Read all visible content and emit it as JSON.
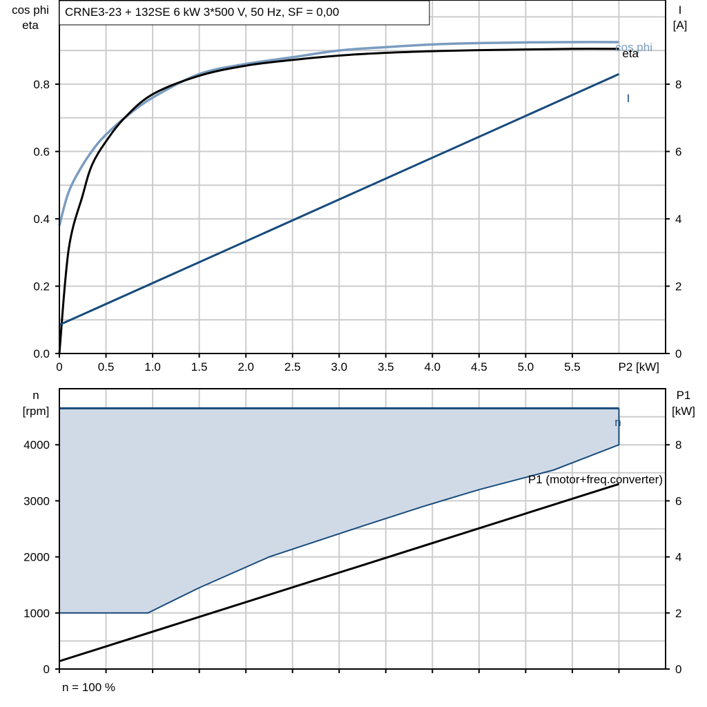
{
  "chart_data": [
    {
      "type": "line",
      "title": "CRNE3-23 + 132SE   6 kW   3*500 V, 50 Hz, SF = 0,00",
      "ylabel_left_line1": "cos phi",
      "ylabel_left_line2": "eta",
      "ylabel_right_line1": "I",
      "ylabel_right_line2": "[A]",
      "xlabel": "P2 [kW]",
      "xlim": [
        0,
        6.5
      ],
      "ylim_left": [
        0,
        1.05
      ],
      "ylim_right": [
        0,
        10.5
      ],
      "x_ticks": [
        0,
        0.5,
        1,
        1.5,
        2,
        2.5,
        3,
        3.5,
        4,
        4.5,
        5,
        5.5
      ],
      "x_tick_labels": [
        "0",
        "0.5",
        "1.0",
        "1.5",
        "2.0",
        "2.5",
        "3.0",
        "3.5",
        "4.0",
        "4.5",
        "5.0",
        "5.5"
      ],
      "y_left_ticks": [
        0,
        0.2,
        0.4,
        0.6,
        0.8
      ],
      "y_left_tick_labels": [
        "0.0",
        "0.2",
        "0.4",
        "0.6",
        "0.8"
      ],
      "y_right_ticks": [
        0,
        2,
        4,
        6,
        8
      ],
      "y_right_tick_labels": [
        "0",
        "2",
        "4",
        "6",
        "8"
      ],
      "grid": true,
      "series": [
        {
          "name": "cos phi",
          "axis": "left",
          "color": "#7a9cc0",
          "x": [
            0,
            0.1,
            0.25,
            0.4,
            0.5,
            0.7,
            1.0,
            1.5,
            2.0,
            2.5,
            3.0,
            3.5,
            4.0,
            4.5,
            5.0,
            5.5,
            6.0
          ],
          "y": [
            0.38,
            0.48,
            0.56,
            0.62,
            0.65,
            0.7,
            0.76,
            0.83,
            0.86,
            0.88,
            0.9,
            0.91,
            0.918,
            0.922,
            0.924,
            0.925,
            0.925
          ]
        },
        {
          "name": "eta",
          "axis": "left",
          "color": "#000000",
          "x": [
            0,
            0.1,
            0.25,
            0.35,
            0.5,
            0.7,
            1.0,
            1.5,
            2.0,
            2.5,
            3.0,
            3.5,
            4.0,
            4.5,
            5.0,
            5.5,
            6.0
          ],
          "y": [
            0.0,
            0.31,
            0.47,
            0.56,
            0.63,
            0.7,
            0.77,
            0.825,
            0.855,
            0.872,
            0.885,
            0.893,
            0.898,
            0.901,
            0.903,
            0.905,
            0.905
          ]
        },
        {
          "name": "I",
          "axis": "right",
          "color": "#164a7c",
          "x": [
            0,
            6.0
          ],
          "y": [
            0.85,
            8.3
          ]
        }
      ]
    },
    {
      "type": "line",
      "ylabel_left_line1": "n",
      "ylabel_left_line2": "[rpm]",
      "ylabel_right_line1": "P1",
      "ylabel_right_line2": "[kW]",
      "footer_note": "n = 100 %",
      "xlim": [
        0,
        6.5
      ],
      "ylim_left": [
        0,
        5000
      ],
      "ylim_right": [
        0,
        10
      ],
      "y_left_ticks": [
        0,
        1000,
        2000,
        3000,
        4000
      ],
      "y_left_tick_labels": [
        "0",
        "1000",
        "2000",
        "3000",
        "4000"
      ],
      "y_right_ticks": [
        0,
        2,
        4,
        6,
        8
      ],
      "y_right_tick_labels": [
        "0",
        "2",
        "4",
        "6",
        "8"
      ],
      "grid": true,
      "area": {
        "color": "#d0dae6",
        "upper_rpm": 4650,
        "lower_x": [
          0,
          0.95,
          1.5,
          2.25,
          3.25,
          3.9,
          4.5,
          5.3,
          6.0
        ],
        "lower_y": [
          1000,
          1000,
          1450,
          2000,
          2550,
          2900,
          3200,
          3550,
          4000
        ]
      },
      "series": [
        {
          "name": "n",
          "axis": "left",
          "color": "#164a7c",
          "x": [
            0,
            6.0
          ],
          "y": [
            4650,
            4650
          ]
        },
        {
          "name": "P1 (motor+freq.converter)",
          "axis": "right",
          "color": "#000000",
          "x": [
            0,
            6.0
          ],
          "y": [
            0.28,
            6.6
          ]
        }
      ]
    }
  ]
}
